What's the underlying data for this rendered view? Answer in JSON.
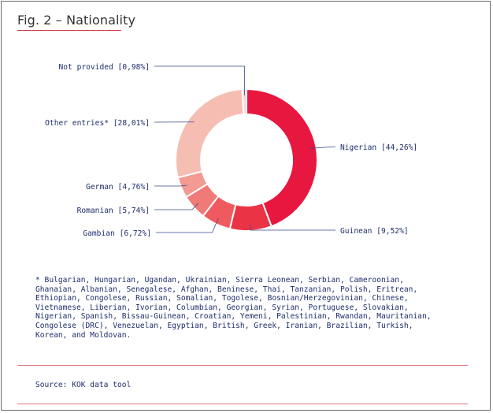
{
  "figure": {
    "title": "Fig. 2 – Nationality"
  },
  "chart_data": {
    "type": "pie",
    "donut": true,
    "title": "Fig. 2 – Nationality",
    "slices": [
      {
        "label": "Nigerian",
        "value": 44.26,
        "display": "Nigerian [44,26%]",
        "color": "#e8173f"
      },
      {
        "label": "Guinean",
        "value": 9.52,
        "display": "Guinean [9,52%]",
        "color": "#ea3345"
      },
      {
        "label": "Gambian",
        "value": 6.72,
        "display": "Gambian [6,72%]",
        "color": "#ee5a5f"
      },
      {
        "label": "Romanian",
        "value": 5.74,
        "display": "Romanian [5,74%]",
        "color": "#f07a78"
      },
      {
        "label": "German",
        "value": 4.76,
        "display": "German [4,76%]",
        "color": "#f39a93"
      },
      {
        "label": "Other entries*",
        "value": 28.01,
        "display": "Other entries* [28,01%]",
        "color": "#f6bdb3"
      },
      {
        "label": "Not provided",
        "value": 0.98,
        "display": "Not provided [0,98%]",
        "color": "#f9d6cf"
      }
    ]
  },
  "footnote": "* Bulgarian, Hungarian, Ugandan, Ukrainian, Sierra Leonean, Serbian, Cameroonian,\nGhanaian, Albanian, Senegalese, Afghan, Beninese, Thai, Tanzanian, Polish, Eritrean,\nEthiopian, Congolese, Russian, Somalian, Togolese, Bosnian/Herzegovinian, Chinese,\nVietnamese, Liberian, Ivorian, Columbian, Georgian, Syrian, Portuguese, Slovakian,\nNigerian, Spanish, Bissau-Guinean, Croatian, Yemeni, Palestinian, Rwandan, Mauritanian,\nCongolese (DRC), Venezuelan, Egyptian, British, Greek, Iranian, Brazilian, Turkish,\nKorean, and Moldovan.",
  "source": "Source: KOK data tool"
}
